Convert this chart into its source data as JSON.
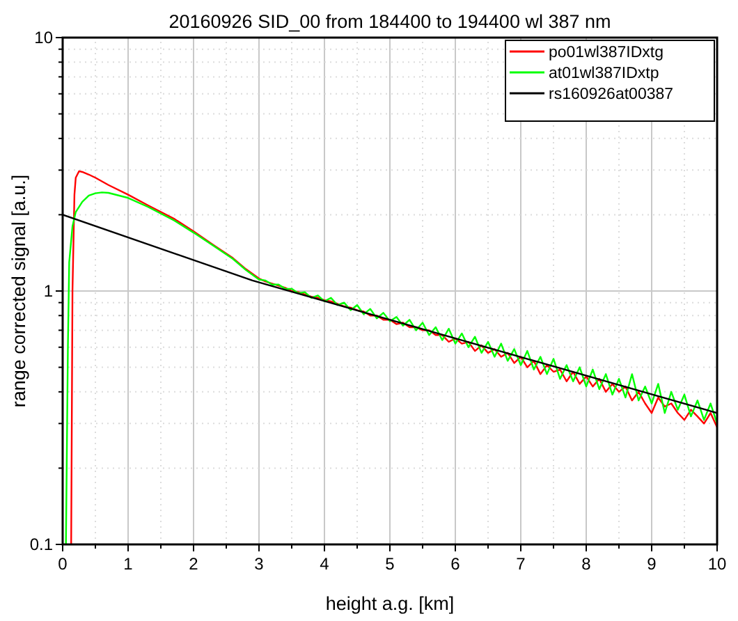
{
  "chart_data": {
    "type": "line",
    "title": "20160926 SID_00 from 184400 to 194400 wl 387 nm",
    "xlabel": "height a.g. [km]",
    "ylabel": "range corrected signal [a.u.]",
    "log": "y",
    "grid": true,
    "legend": "top right",
    "marker": "none",
    "line_style": "solid",
    "xlim": [
      0,
      10
    ],
    "ylim": [
      0.1,
      10
    ],
    "xticks": [
      0,
      {
        "value": 0.5,
        "label": null
      },
      1,
      {
        "value": 1.5,
        "label": null
      },
      2,
      {
        "value": 2.5,
        "label": null
      },
      3,
      {
        "value": 3.5,
        "label": null
      },
      4,
      {
        "value": 4.5,
        "label": null
      },
      5,
      {
        "value": 5.5,
        "label": null
      },
      6,
      {
        "value": 6.5,
        "label": null
      },
      7,
      {
        "value": 7.5,
        "label": null
      },
      8,
      {
        "value": 8.5,
        "label": null
      },
      9,
      {
        "value": 9.5,
        "label": null
      },
      10
    ],
    "yticks": [
      0.1,
      {
        "value": 0.2,
        "label": null
      },
      {
        "value": 0.3,
        "label": null
      },
      {
        "value": 0.4,
        "label": null
      },
      {
        "value": 0.5,
        "label": null
      },
      {
        "value": 0.6,
        "label": null
      },
      {
        "value": 0.7,
        "label": null
      },
      {
        "value": 0.8,
        "label": null
      },
      {
        "value": 0.9,
        "label": null
      },
      1,
      {
        "value": 2,
        "label": null
      },
      {
        "value": 3,
        "label": null
      },
      {
        "value": 4,
        "label": null
      },
      {
        "value": 5,
        "label": null
      },
      {
        "value": 6,
        "label": null
      },
      {
        "value": 7,
        "label": null
      },
      {
        "value": 8,
        "label": null
      },
      {
        "value": 9,
        "label": null
      },
      10
    ],
    "series": [
      {
        "name": "po01wl387IDxtg",
        "color": "#ff0000",
        "x": [
          0.13,
          0.15,
          0.18,
          0.2,
          0.25,
          0.3,
          0.4,
          0.5,
          0.7,
          1.0,
          1.3,
          1.7,
          2.0,
          2.3,
          2.6,
          2.8,
          3.0,
          3.1,
          3.2,
          3.3,
          3.4,
          3.5,
          3.6,
          3.7,
          3.8,
          3.9,
          4.0,
          4.1,
          4.2,
          4.3,
          4.4,
          4.5,
          4.6,
          4.7,
          4.8,
          4.9,
          5.0,
          5.1,
          5.2,
          5.3,
          5.4,
          5.5,
          5.6,
          5.7,
          5.8,
          5.9,
          6.0,
          6.1,
          6.2,
          6.3,
          6.4,
          6.5,
          6.6,
          6.7,
          6.8,
          6.9,
          7.0,
          7.1,
          7.2,
          7.3,
          7.4,
          7.5,
          7.6,
          7.7,
          7.8,
          7.9,
          8.0,
          8.1,
          8.2,
          8.3,
          8.4,
          8.5,
          8.6,
          8.7,
          8.8,
          8.9,
          9.0,
          9.1,
          9.2,
          9.3,
          9.4,
          9.5,
          9.6,
          9.7,
          9.8,
          9.9,
          10.0
        ],
        "values": [
          0.1,
          1.0,
          2.4,
          2.8,
          2.97,
          2.95,
          2.88,
          2.8,
          2.62,
          2.4,
          2.18,
          1.93,
          1.72,
          1.52,
          1.35,
          1.22,
          1.12,
          1.09,
          1.07,
          1.05,
          1.03,
          1.0,
          0.99,
          0.97,
          0.95,
          0.94,
          0.92,
          0.91,
          0.89,
          0.87,
          0.86,
          0.84,
          0.83,
          0.8,
          0.8,
          0.77,
          0.77,
          0.74,
          0.75,
          0.72,
          0.72,
          0.7,
          0.7,
          0.67,
          0.67,
          0.63,
          0.65,
          0.62,
          0.63,
          0.58,
          0.61,
          0.57,
          0.59,
          0.55,
          0.57,
          0.52,
          0.55,
          0.5,
          0.53,
          0.47,
          0.51,
          0.48,
          0.49,
          0.44,
          0.48,
          0.43,
          0.46,
          0.42,
          0.45,
          0.4,
          0.43,
          0.4,
          0.42,
          0.37,
          0.4,
          0.36,
          0.33,
          0.38,
          0.35,
          0.36,
          0.33,
          0.31,
          0.34,
          0.32,
          0.3,
          0.33,
          0.29
        ]
      },
      {
        "name": "at01wl387IDxtp",
        "color": "#00ff00",
        "x": [
          0.05,
          0.08,
          0.1,
          0.15,
          0.2,
          0.3,
          0.4,
          0.5,
          0.6,
          0.7,
          1.0,
          1.3,
          1.7,
          2.0,
          2.3,
          2.6,
          2.8,
          3.0,
          3.1,
          3.2,
          3.3,
          3.4,
          3.5,
          3.6,
          3.7,
          3.8,
          3.9,
          4.0,
          4.1,
          4.2,
          4.3,
          4.4,
          4.5,
          4.6,
          4.7,
          4.8,
          4.9,
          5.0,
          5.1,
          5.2,
          5.3,
          5.4,
          5.5,
          5.6,
          5.7,
          5.8,
          5.9,
          6.0,
          6.1,
          6.2,
          6.3,
          6.4,
          6.5,
          6.6,
          6.7,
          6.8,
          6.9,
          7.0,
          7.1,
          7.2,
          7.3,
          7.4,
          7.5,
          7.6,
          7.7,
          7.8,
          7.9,
          8.0,
          8.1,
          8.2,
          8.3,
          8.4,
          8.5,
          8.6,
          8.7,
          8.8,
          8.9,
          9.0,
          9.1,
          9.2,
          9.3,
          9.4,
          9.5,
          9.6,
          9.7,
          9.8,
          9.9,
          10.0
        ],
        "values": [
          0.1,
          0.6,
          1.3,
          1.8,
          2.05,
          2.25,
          2.38,
          2.43,
          2.45,
          2.44,
          2.33,
          2.15,
          1.9,
          1.7,
          1.51,
          1.34,
          1.21,
          1.11,
          1.1,
          1.06,
          1.06,
          1.02,
          1.02,
          0.98,
          0.99,
          0.94,
          0.96,
          0.91,
          0.94,
          0.88,
          0.9,
          0.84,
          0.88,
          0.81,
          0.85,
          0.78,
          0.82,
          0.76,
          0.79,
          0.73,
          0.77,
          0.7,
          0.75,
          0.67,
          0.72,
          0.64,
          0.71,
          0.62,
          0.68,
          0.6,
          0.66,
          0.57,
          0.63,
          0.55,
          0.62,
          0.53,
          0.59,
          0.51,
          0.58,
          0.49,
          0.55,
          0.47,
          0.54,
          0.45,
          0.51,
          0.44,
          0.5,
          0.42,
          0.49,
          0.41,
          0.47,
          0.39,
          0.45,
          0.38,
          0.47,
          0.37,
          0.42,
          0.36,
          0.43,
          0.33,
          0.4,
          0.34,
          0.39,
          0.32,
          0.37,
          0.31,
          0.36,
          0.3
        ]
      },
      {
        "name": "rs160926at00387",
        "color": "#000000",
        "x": [
          0,
          2.9,
          10
        ],
        "values": [
          2.0,
          1.1,
          0.33
        ]
      }
    ]
  }
}
